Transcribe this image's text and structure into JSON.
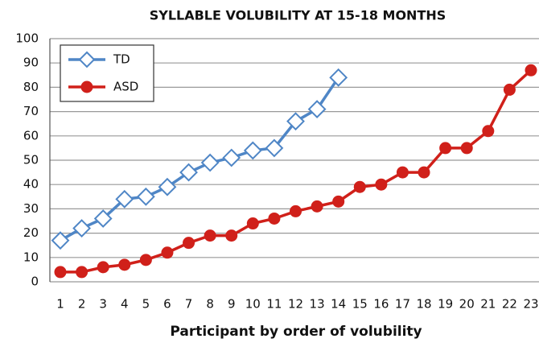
{
  "chart_data": {
    "type": "line",
    "title": "SYLLABLE VOLUBILITY AT 15-18 MONTHS",
    "x_label": "Participant by order of volubility",
    "categories": [
      "1",
      "2",
      "3",
      "4",
      "5",
      "6",
      "7",
      "8",
      "9",
      "10",
      "11",
      "12",
      "13",
      "14",
      "15",
      "16",
      "17",
      "18",
      "19",
      "20",
      "21",
      "22",
      "23"
    ],
    "series": [
      {
        "name": "TD",
        "color": "#4f86c6",
        "marker": "diamond",
        "values": [
          17,
          22,
          26,
          34,
          35,
          39,
          45,
          49,
          51,
          54,
          55,
          66,
          71,
          84,
          null,
          null,
          null,
          null,
          null,
          null,
          null,
          null,
          null
        ]
      },
      {
        "name": "ASD",
        "color": "#d0201a",
        "marker": "circle",
        "values": [
          4,
          4,
          6,
          7,
          9,
          12,
          16,
          19,
          19,
          24,
          26,
          29,
          31,
          33,
          39,
          40,
          45,
          45,
          55,
          55,
          62,
          79,
          87
        ]
      }
    ],
    "ylim": [
      0,
      100
    ],
    "yticks": [
      0,
      10,
      20,
      30,
      40,
      50,
      60,
      70,
      80,
      90,
      100
    ],
    "grid": true,
    "legend": "top-left"
  }
}
